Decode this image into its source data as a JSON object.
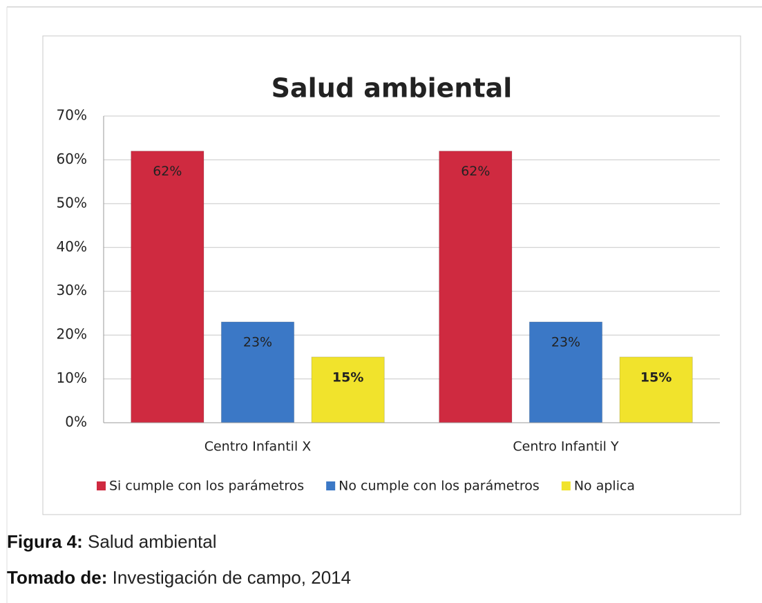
{
  "chart_data": {
    "type": "bar",
    "title": "Salud ambiental",
    "categories": [
      "Centro Infantil X",
      "Centro Infantil Y"
    ],
    "series": [
      {
        "name": "Si cumple con los parámetros",
        "color": "#cf2a40",
        "values": [
          62,
          62
        ],
        "value_labels": [
          "62%",
          "62%"
        ]
      },
      {
        "name": "No cumple con los parámetros",
        "color": "#3b78c6",
        "values": [
          23,
          23
        ],
        "value_labels": [
          "23%",
          "23%"
        ]
      },
      {
        "name": "No aplica",
        "color": "#f1e32c",
        "values": [
          15,
          15
        ],
        "value_labels": [
          "15%",
          "15%"
        ]
      }
    ],
    "ylim": [
      0,
      70
    ],
    "yticks": [
      {
        "value": 0,
        "label": "0%"
      },
      {
        "value": 10,
        "label": "10%"
      },
      {
        "value": 20,
        "label": "20%"
      },
      {
        "value": 30,
        "label": "30%"
      },
      {
        "value": 40,
        "label": "40%"
      },
      {
        "value": 50,
        "label": "50%"
      },
      {
        "value": 60,
        "label": "60%"
      },
      {
        "value": 70,
        "label": "70%"
      }
    ],
    "grid": true,
    "legend": "bottom"
  },
  "captions": [
    {
      "label": "Figura 4:",
      "text": "Salud ambiental"
    },
    {
      "label": "Tomado de:",
      "text": "Investigación de campo, 2014"
    }
  ]
}
